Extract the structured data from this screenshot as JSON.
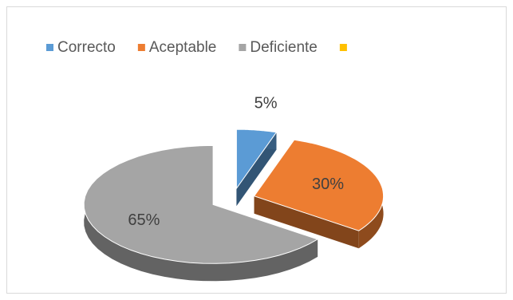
{
  "chart_data": {
    "type": "pie",
    "categories": [
      "Correcto",
      "Aceptable",
      "Deficiente",
      null
    ],
    "values": [
      5,
      30,
      65,
      0
    ],
    "value_labels": [
      "5%",
      "30%",
      "65%",
      null
    ],
    "colors": [
      "#5b9bd5",
      "#ed7d31",
      "#a5a5a5",
      "#ffc000"
    ],
    "legend": "top",
    "exploded": true,
    "three_d": true
  }
}
